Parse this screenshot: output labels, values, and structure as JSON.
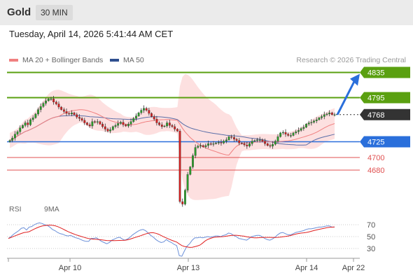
{
  "header": {
    "title": "Gold",
    "timeframe": "30 MIN",
    "timestamp": "Tuesday, April 14, 2026 5:41:44 AM CET",
    "credit": "Research © 2026 Trading Central"
  },
  "legend": {
    "ma20": {
      "label": "MA 20 + Bollinger Bands",
      "color": "#f08080"
    },
    "ma50": {
      "label": "MA 50",
      "color": "#2f4f8f"
    }
  },
  "rsi_legend": {
    "rsi": {
      "label": "RSI",
      "color": "#6a8fd8"
    },
    "ma9": {
      "label": "9MA",
      "color": "#e02020"
    }
  },
  "colors": {
    "resistance": "#5aa010",
    "support": "#2a6fdb",
    "minor": "#e05050",
    "last": "#333333",
    "up": "#2a9a2a",
    "down": "#d02020",
    "band": "#fde0e0"
  },
  "chart_data": [
    {
      "type": "candlestick",
      "title": "Gold",
      "timeframe": "30 MIN",
      "x_tick_labels": [
        "Apr 10",
        "Apr 13",
        "Apr 14",
        "Apr 22"
      ],
      "ylim": [
        4600,
        4860
      ],
      "levels": [
        {
          "label": "4835",
          "value": 4835,
          "kind": "resistance"
        },
        {
          "label": "4795",
          "value": 4795,
          "kind": "resistance"
        },
        {
          "label": "4768",
          "value": 4768,
          "kind": "last"
        },
        {
          "label": "4725",
          "value": 4725,
          "kind": "support"
        },
        {
          "label": "4700",
          "value": 4700,
          "kind": "minor"
        },
        {
          "label": "4680",
          "value": 4680,
          "kind": "minor"
        }
      ],
      "forecast_arrow": {
        "from": 4768,
        "to": 4835
      },
      "close": [
        4727,
        4731,
        4737,
        4741,
        4747,
        4751,
        4755,
        4752,
        4760,
        4763,
        4769,
        4776,
        4781,
        4786,
        4790,
        4793,
        4793,
        4788,
        4785,
        4780,
        4776,
        4773,
        4770,
        4769,
        4771,
        4768,
        4764,
        4762,
        4759,
        4755,
        4752,
        4750,
        4757,
        4756,
        4757,
        4753,
        4749,
        4745,
        4742,
        4744,
        4749,
        4751,
        4754,
        4756,
        4752,
        4750,
        4753,
        4757,
        4762,
        4766,
        4771,
        4775,
        4778,
        4775,
        4770,
        4765,
        4761,
        4755,
        4752,
        4749,
        4750,
        4755,
        4751,
        4749,
        4745,
        4742,
        4630,
        4626,
        4648,
        4673,
        4685,
        4703,
        4716,
        4718,
        4719,
        4717,
        4719,
        4722,
        4721,
        4722,
        4723,
        4724,
        4723,
        4726,
        4728,
        4733,
        4732,
        4729,
        4727,
        4723,
        4722,
        4720,
        4718,
        4722,
        4726,
        4727,
        4728,
        4728,
        4726,
        4722,
        4719,
        4718,
        4721,
        4726,
        4733,
        4739,
        4740,
        4737,
        4735,
        4735,
        4739,
        4741,
        4743,
        4746,
        4748,
        4753,
        4755,
        4756,
        4758,
        4760,
        4763,
        4765,
        4768,
        4769,
        4771,
        4768,
        4768
      ]
    },
    {
      "type": "line",
      "title": "RSI",
      "series": [
        {
          "name": "RSI"
        },
        {
          "name": "9MA"
        }
      ],
      "y_tick_labels": [
        "70",
        "50",
        "30"
      ],
      "ylim": [
        15,
        80
      ],
      "values": [
        47,
        50,
        54,
        57,
        60,
        64,
        65,
        61,
        66,
        67,
        70,
        72,
        73,
        72,
        70,
        69,
        66,
        62,
        60,
        57,
        55,
        54,
        52,
        51,
        52,
        50,
        48,
        47,
        45,
        43,
        42,
        42,
        47,
        47,
        48,
        45,
        42,
        40,
        38,
        40,
        44,
        46,
        48,
        49,
        46,
        44,
        46,
        49,
        53,
        56,
        59,
        61,
        62,
        60,
        56,
        52,
        49,
        45,
        42,
        40,
        41,
        45,
        42,
        40,
        37,
        35,
        18,
        17,
        26,
        34,
        38,
        44,
        48,
        48,
        49,
        48,
        49,
        50,
        49,
        50,
        51,
        51,
        50,
        52,
        53,
        56,
        55,
        52,
        50,
        47,
        46,
        45,
        44,
        47,
        50,
        51,
        52,
        52,
        50,
        47,
        45,
        44,
        46,
        49,
        53,
        56,
        57,
        55,
        53,
        53,
        55,
        57,
        58,
        59,
        60,
        62,
        63,
        63,
        64,
        65,
        66,
        66,
        67,
        68,
        68,
        66,
        66
      ]
    }
  ]
}
